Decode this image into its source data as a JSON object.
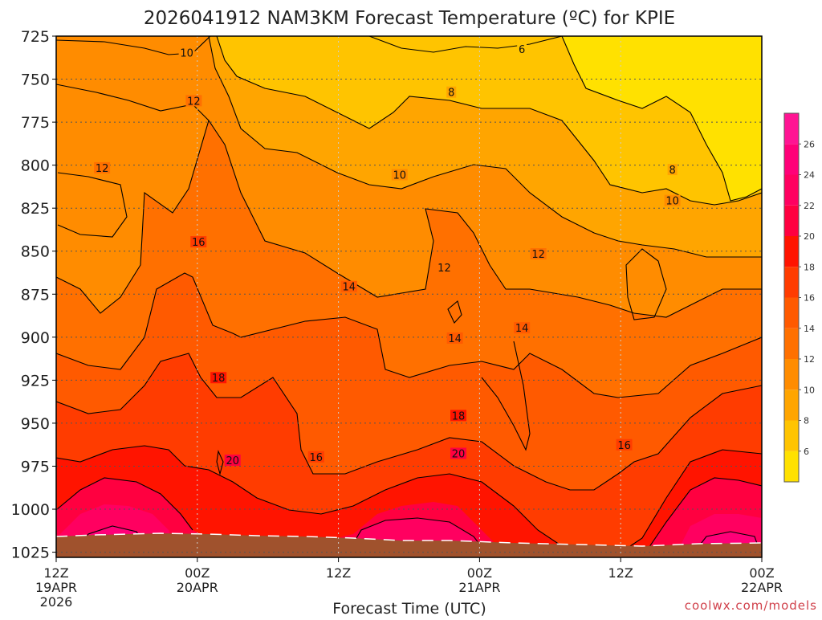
{
  "chart_data": {
    "type": "heatmap",
    "title": "2026041912 NAM3KM Forecast Temperature (ºC) for KPIE",
    "xlabel": "Forecast Time (UTC)",
    "ylabel": "",
    "credit": "coolwx.com/models",
    "x_ticks": [
      {
        "hour": 0,
        "lines": [
          "12Z",
          "19APR",
          "2026"
        ]
      },
      {
        "hour": 12,
        "lines": [
          "00Z",
          "20APR"
        ]
      },
      {
        "hour": 24,
        "lines": [
          "12Z"
        ]
      },
      {
        "hour": 36,
        "lines": [
          "00Z",
          "21APR"
        ]
      },
      {
        "hour": 48,
        "lines": [
          "12Z"
        ]
      },
      {
        "hour": 60,
        "lines": [
          "00Z",
          "22APR"
        ]
      }
    ],
    "xlim_hours": [
      0,
      60
    ],
    "y_ticks": [
      725,
      750,
      775,
      800,
      825,
      850,
      875,
      900,
      925,
      950,
      975,
      1000,
      1025
    ],
    "ylim_hPa": [
      725,
      1028
    ],
    "y_inverted": true,
    "grid": "dotted",
    "colorbar": {
      "ticks": [
        6,
        8,
        10,
        12,
        14,
        16,
        18,
        20,
        22,
        24,
        26
      ],
      "bins": [
        {
          "lo": 4,
          "color": "#ffe100"
        },
        {
          "lo": 6,
          "color": "#ffc400"
        },
        {
          "lo": 8,
          "color": "#ffa500"
        },
        {
          "lo": 10,
          "color": "#ff8c00"
        },
        {
          "lo": 12,
          "color": "#ff7000"
        },
        {
          "lo": 14,
          "color": "#ff5a00"
        },
        {
          "lo": 16,
          "color": "#ff3c00"
        },
        {
          "lo": 18,
          "color": "#ff1400"
        },
        {
          "lo": 20,
          "color": "#ff0040"
        },
        {
          "lo": 22,
          "color": "#ff0060"
        },
        {
          "lo": 24,
          "color": "#ff0078"
        },
        {
          "lo": 26,
          "color": "#ff1493"
        }
      ],
      "range": [
        4,
        28
      ]
    },
    "ground_color": "#a0522d",
    "contour_labels": [
      {
        "label": "6",
        "hour": 39.6,
        "p": 733
      },
      {
        "label": "8",
        "hour": 33.6,
        "p": 758
      },
      {
        "label": "8",
        "hour": 52.4,
        "p": 803
      },
      {
        "label": "10",
        "hour": 11.1,
        "p": 735
      },
      {
        "label": "10",
        "hour": 29.2,
        "p": 806
      },
      {
        "label": "10",
        "hour": 52.4,
        "p": 821
      },
      {
        "label": "12",
        "hour": 11.7,
        "p": 763
      },
      {
        "label": "12",
        "hour": 3.9,
        "p": 802
      },
      {
        "label": "12",
        "hour": 33.0,
        "p": 860
      },
      {
        "label": "12",
        "hour": 41.0,
        "p": 852
      },
      {
        "label": "14",
        "hour": 24.9,
        "p": 871
      },
      {
        "label": "14",
        "hour": 33.9,
        "p": 901
      },
      {
        "label": "14",
        "hour": 39.6,
        "p": 895
      },
      {
        "label": "16",
        "hour": 12.1,
        "p": 845
      },
      {
        "label": "16",
        "hour": 22.1,
        "p": 970
      },
      {
        "label": "16",
        "hour": 48.3,
        "p": 963
      },
      {
        "label": "18",
        "hour": 13.8,
        "p": 924
      },
      {
        "label": "18",
        "hour": 34.2,
        "p": 946
      },
      {
        "label": "20",
        "hour": 15.0,
        "p": 972
      },
      {
        "label": "20",
        "hour": 34.2,
        "p": 968
      }
    ]
  }
}
